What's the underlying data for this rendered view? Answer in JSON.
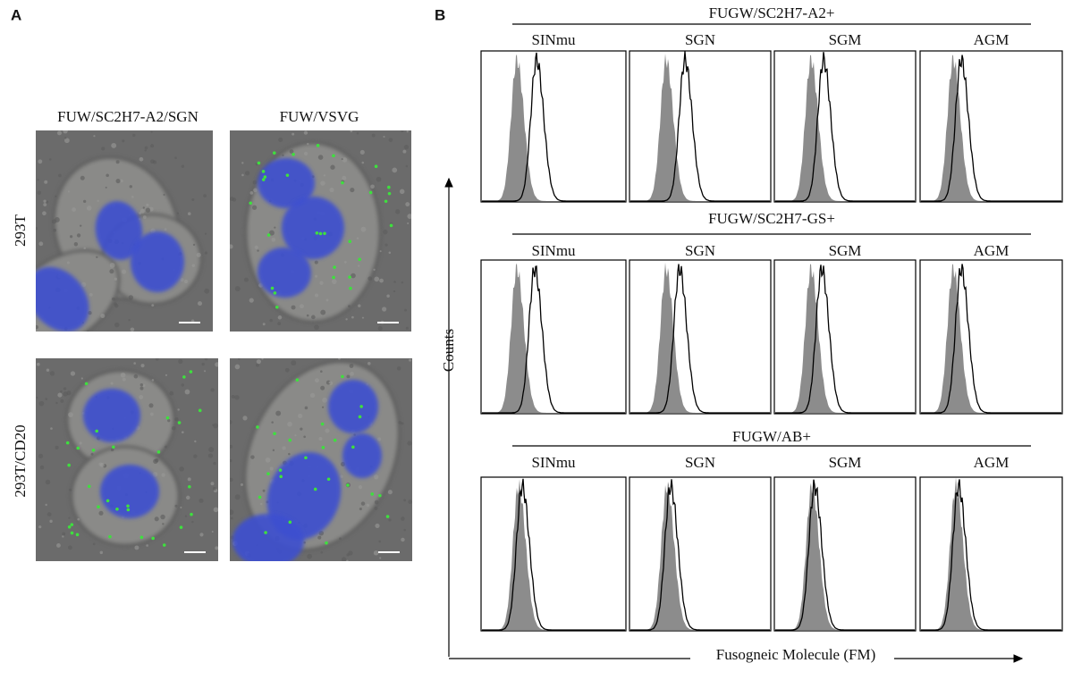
{
  "panel_a": {
    "label": "A",
    "columns": [
      "FUW/SC2H7-A2/SGN",
      "FUW/VSVG"
    ],
    "rows": [
      "293T",
      "293T/CD20"
    ]
  },
  "panel_b": {
    "label": "B",
    "groups": [
      {
        "title": "FUGW/SC2H7-A2+",
        "columns": [
          "SINmu",
          "SGN",
          "SGM",
          "AGM"
        ]
      },
      {
        "title": "FUGW/SC2H7-GS+",
        "columns": [
          "SINmu",
          "SGN",
          "SGM",
          "AGM"
        ]
      },
      {
        "title": "FUGW/AB+",
        "columns": [
          "SINmu",
          "SGN",
          "SGM",
          "AGM"
        ]
      }
    ],
    "y_label": "Counts",
    "x_label": "Fusogneic Molecule (FM)"
  }
}
